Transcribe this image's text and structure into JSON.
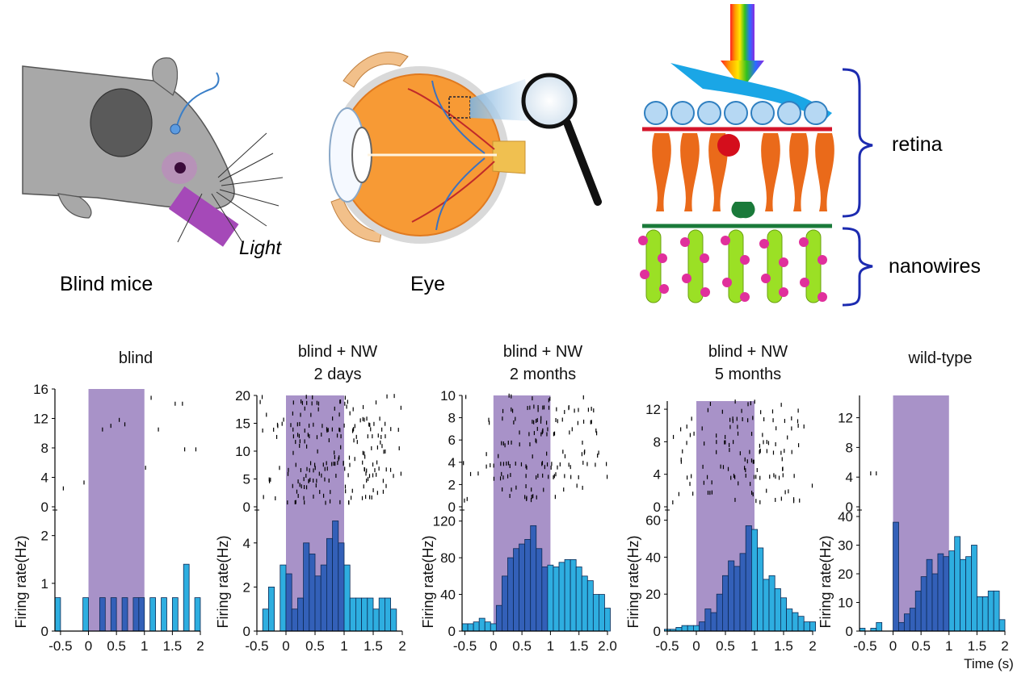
{
  "illustrations": {
    "mouse": {
      "label": "Blind mice",
      "light_label": "Light"
    },
    "eye": {
      "label": "Eye"
    },
    "retina_panel": {
      "retina_label": "retina",
      "nanowires_label": "nanowires"
    }
  },
  "axes_common": {
    "ylabel_full": "Firing rate(Hz)",
    "ylabel_short": "Firing rate(Hz",
    "time_label": "Time (s)"
  },
  "colors": {
    "stimulus": "#a892c8",
    "bar_fill": "#2eaee0",
    "bar_fill_in_light": "#3360b8",
    "bar_edge": "#0d2a55",
    "bracket": "#1c2bb0",
    "raster_tick": "#000000"
  },
  "chart_data": [
    {
      "type": "bar",
      "panel": "blind",
      "title": "blind",
      "ylabel": "Firing rate(Hz)",
      "stimulus_window": [
        0,
        1
      ],
      "x_tick_labels": [
        "-0.5",
        "0",
        "0.5",
        "1",
        "1.5",
        "2"
      ],
      "raster_y_ticks": [
        "0",
        "4",
        "8",
        "12",
        "16"
      ],
      "hist_y_ticks": [
        "0",
        "1",
        "2"
      ],
      "xlim": [
        -0.6,
        2
      ],
      "raster_ylim": [
        0,
        16
      ],
      "hist_ylim": [
        0,
        2.4
      ],
      "bin_width": 0.1,
      "bins_start": [
        -0.6,
        -0.1,
        0.2,
        0.4,
        0.6,
        0.8,
        0.9,
        1.1,
        1.3,
        1.5,
        1.7,
        1.9
      ],
      "values": [
        0.7,
        0.7,
        0.7,
        0.7,
        0.7,
        0.7,
        0.7,
        0.7,
        0.7,
        0.7,
        1.4,
        0.7
      ],
      "raster_spikes": [
        [
          -0.45,
          2.5
        ],
        [
          -0.08,
          3.3
        ],
        [
          0.25,
          10.5
        ],
        [
          0.4,
          11.0
        ],
        [
          0.55,
          11.8
        ],
        [
          0.65,
          11.2
        ],
        [
          1.02,
          5.3
        ],
        [
          1.12,
          14.8
        ],
        [
          1.25,
          10.5
        ],
        [
          1.55,
          14.0
        ],
        [
          1.68,
          14.0
        ],
        [
          1.72,
          7.8
        ],
        [
          1.92,
          7.8
        ]
      ]
    },
    {
      "type": "bar",
      "panel": "blind + NW 2 days",
      "title": [
        "blind + NW",
        "2 days"
      ],
      "ylabel": "Firing rate(Hz)",
      "stimulus_window": [
        0,
        1
      ],
      "x_tick_labels": [
        "-0.5",
        "0",
        "0.5",
        "1",
        "1.5",
        "2"
      ],
      "raster_y_ticks": [
        "0",
        "5",
        "10",
        "15",
        "20"
      ],
      "hist_y_ticks": [
        "0",
        "2",
        "4"
      ],
      "xlim": [
        -0.5,
        2
      ],
      "raster_ylim": [
        0,
        20
      ],
      "hist_ylim": [
        0,
        5.2
      ],
      "bin_width": 0.1,
      "bins_start": [
        -0.4,
        -0.3,
        -0.1,
        0.0,
        0.1,
        0.2,
        0.3,
        0.4,
        0.5,
        0.6,
        0.7,
        0.8,
        0.9,
        1.0,
        1.1,
        1.2,
        1.3,
        1.4,
        1.5,
        1.6,
        1.7,
        1.8
      ],
      "values": [
        1.0,
        2.0,
        3.0,
        2.6,
        1.0,
        1.5,
        4.0,
        3.5,
        2.5,
        3.0,
        4.2,
        5.0,
        4.0,
        3.0,
        1.5,
        1.5,
        1.5,
        1.5,
        1.0,
        1.5,
        1.5,
        1.0
      ],
      "raster_spikes": []
    },
    {
      "type": "bar",
      "panel": "blind + NW 2 months",
      "title": [
        "blind + NW",
        "2 months"
      ],
      "ylabel": "Firing rate(Hz)",
      "stimulus_window": [
        0,
        1
      ],
      "x_tick_labels": [
        "-0.5",
        "0",
        "0.5",
        "1",
        "1.5",
        "2.0"
      ],
      "raster_y_ticks": [
        "0",
        "2",
        "4",
        "6",
        "8",
        "10"
      ],
      "hist_y_ticks": [
        "0",
        "40",
        "80",
        "120"
      ],
      "xlim": [
        -0.55,
        2
      ],
      "raster_ylim": [
        0,
        10
      ],
      "hist_ylim": [
        0,
        125
      ],
      "bin_width": 0.1,
      "bins_start": [
        -0.55,
        -0.45,
        -0.35,
        -0.25,
        -0.15,
        -0.05,
        0.05,
        0.15,
        0.25,
        0.35,
        0.45,
        0.55,
        0.65,
        0.75,
        0.85,
        0.95,
        1.05,
        1.15,
        1.25,
        1.35,
        1.45,
        1.55,
        1.65,
        1.75,
        1.85,
        1.95
      ],
      "values": [
        8,
        8,
        10,
        14,
        10,
        8,
        28,
        60,
        80,
        90,
        95,
        100,
        115,
        90,
        70,
        72,
        70,
        75,
        78,
        78,
        70,
        60,
        55,
        40,
        40,
        25
      ],
      "raster_spikes": []
    },
    {
      "type": "bar",
      "panel": "blind + NW 5 months",
      "title": [
        "blind + NW",
        "5 months"
      ],
      "ylabel": "Firing rate(Hz)",
      "stimulus_window": [
        0,
        1
      ],
      "x_tick_labels": [
        "-0.5",
        "0",
        "0.5",
        "1",
        "1.5",
        "2"
      ],
      "raster_y_ticks": [
        "0",
        "4",
        "8",
        "12"
      ],
      "hist_y_ticks": [
        "0",
        "20",
        "40",
        "60"
      ],
      "xlim": [
        -0.5,
        2
      ],
      "raster_ylim": [
        0,
        13
      ],
      "hist_ylim": [
        0,
        62
      ],
      "bin_width": 0.1,
      "bins_start": [
        -0.55,
        -0.45,
        -0.35,
        -0.25,
        -0.15,
        -0.05,
        0.05,
        0.15,
        0.25,
        0.35,
        0.45,
        0.55,
        0.65,
        0.75,
        0.85,
        0.95,
        1.05,
        1.15,
        1.25,
        1.35,
        1.45,
        1.55,
        1.65,
        1.75,
        1.85,
        1.95
      ],
      "values": [
        1,
        1,
        2,
        3,
        3,
        3,
        5,
        12,
        10,
        20,
        30,
        38,
        35,
        42,
        57,
        55,
        45,
        28,
        30,
        23,
        18,
        12,
        10,
        8,
        5,
        5
      ],
      "raster_spikes": []
    },
    {
      "type": "bar",
      "panel": "wild-type",
      "title": "wild-type",
      "ylabel": "Firing rate(Hz)",
      "xlabel": "Time (s)",
      "stimulus_window": [
        0,
        1
      ],
      "x_tick_labels": [
        "-0.5",
        "0",
        "0.5",
        "1",
        "1.5",
        "2"
      ],
      "raster_y_ticks": [
        "0",
        "4",
        "8",
        "12"
      ],
      "hist_y_ticks": [
        "0",
        "10",
        "20",
        "30",
        "40"
      ],
      "xlim": [
        -0.6,
        2
      ],
      "raster_ylim": [
        0,
        15
      ],
      "hist_ylim": [
        0,
        40
      ],
      "bin_width": 0.1,
      "bins_start": [
        -0.6,
        -0.4,
        -0.3,
        0.0,
        0.1,
        0.2,
        0.3,
        0.4,
        0.5,
        0.6,
        0.7,
        0.8,
        0.9,
        1.0,
        1.1,
        1.2,
        1.3,
        1.4,
        1.5,
        1.6,
        1.7,
        1.8,
        1.9
      ],
      "values": [
        1,
        1,
        3,
        38,
        3,
        6,
        8,
        14,
        19,
        25,
        20,
        27,
        26,
        28,
        33,
        25,
        26,
        30,
        12,
        12,
        14,
        14,
        4
      ],
      "raster_spikes": [
        [
          -0.4,
          4.5
        ],
        [
          -0.3,
          4.5
        ]
      ]
    }
  ]
}
